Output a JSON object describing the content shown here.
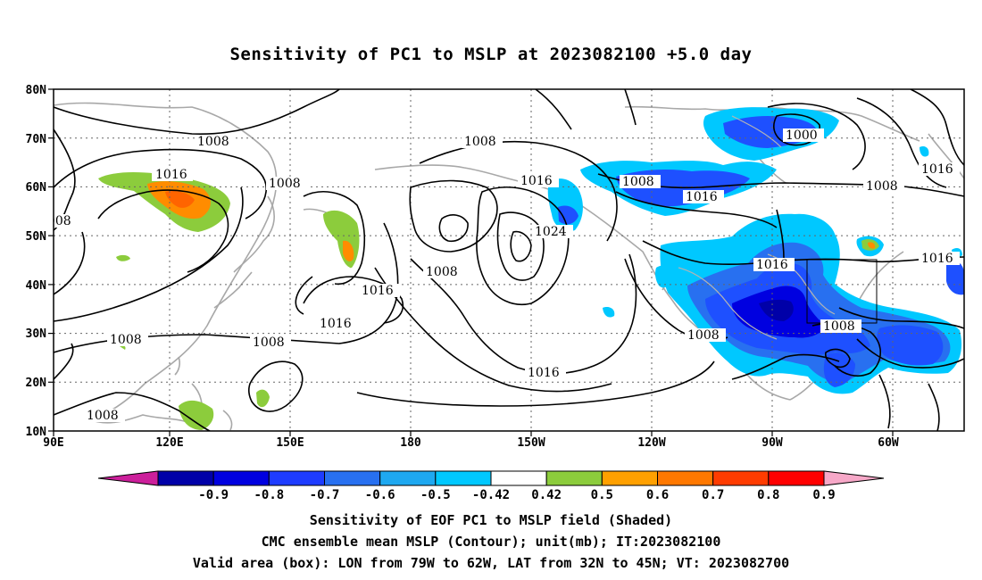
{
  "title": "Sensitivity of PC1 to MSLP at 2023082100 +5.0 day",
  "lat_labels": [
    "80N",
    "70N",
    "60N",
    "50N",
    "40N",
    "30N",
    "20N",
    "10N"
  ],
  "lon_labels": [
    "90E",
    "120E",
    "150E",
    "180",
    "150W",
    "120W",
    "90W",
    "60W"
  ],
  "colorbar": {
    "labels": [
      "-0.9",
      "-0.8",
      "-0.7",
      "-0.6",
      "-0.5",
      "-0.42",
      "0.42",
      "0.5",
      "0.6",
      "0.7",
      "0.8",
      "0.9"
    ],
    "colors": [
      "#cc1f9b",
      "#0000a8",
      "#0000e0",
      "#1e3cff",
      "#2870f0",
      "#1ea8f0",
      "#00c8ff",
      "#ffffff",
      "#8ccc3c",
      "#ffa000",
      "#ff7800",
      "#ff3c00",
      "#ff0000",
      "#f7a8c8"
    ]
  },
  "shading_colors": {
    "dark_blue": "#0000e0",
    "blue": "#1e50ff",
    "mid_blue": "#2870f0",
    "light_blue": "#30a0f0",
    "cyan": "#00c8ff",
    "green": "#8ccc3c",
    "orange": "#ff8c00",
    "red_orange": "#ff6400"
  },
  "contour_labels": [
    "1008",
    "1016",
    "1008",
    "1016",
    "1008",
    "1016",
    "1008",
    "1008",
    "1024",
    "1016",
    "1008",
    "1016",
    "1008",
    "1000",
    "1008",
    "1016",
    "1016",
    "1016",
    "1008",
    "1008",
    "1016",
    "1016",
    "1008",
    "1008"
  ],
  "valid_box": {
    "lon_from": "79W",
    "lon_to": "62W",
    "lat_from": "32N",
    "lat_to": "45N"
  },
  "caption": {
    "line1": "Sensitivity of EOF PC1 to MSLP field (Shaded)",
    "line2": "CMC ensemble mean MSLP (Contour); unit(mb); IT:2023082100",
    "line3": "Valid area (box): LON from 79W to 62W, LAT from 32N to 45N; VT: 2023082700"
  }
}
